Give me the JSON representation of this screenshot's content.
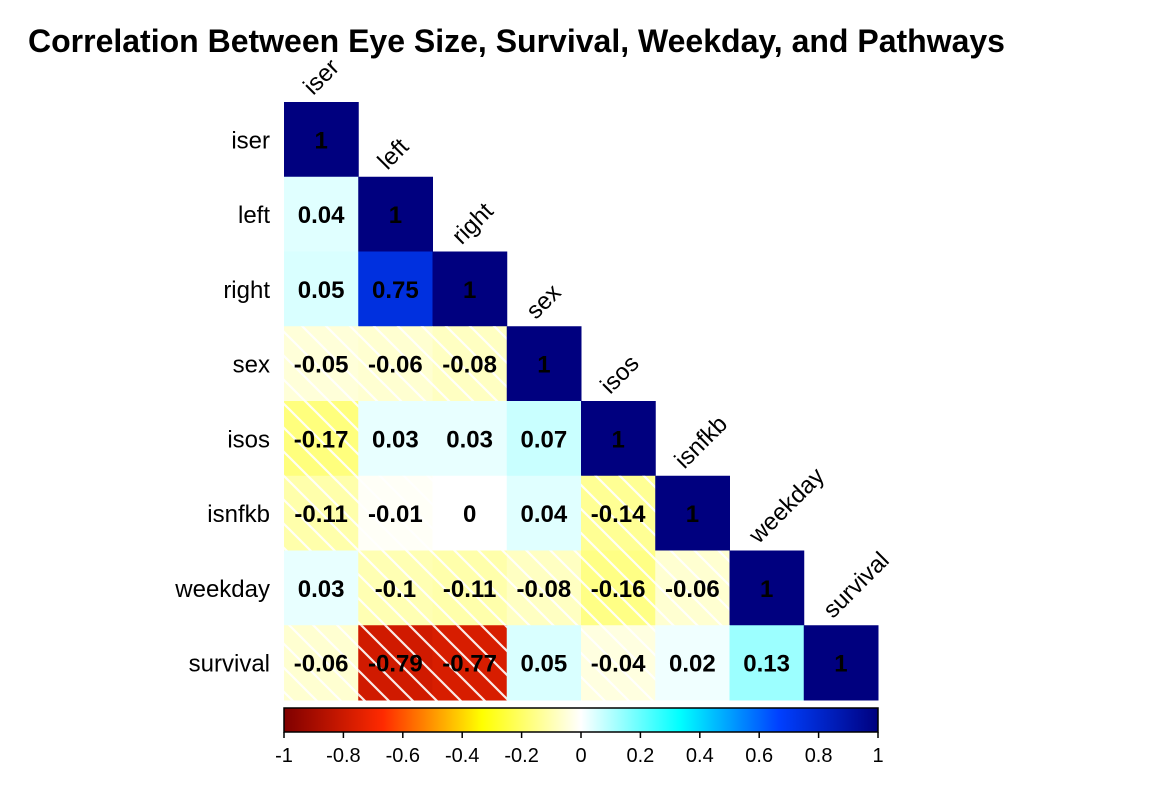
{
  "chart_data": {
    "type": "heatmap",
    "subtype": "correlation-lower-triangle",
    "title": "Correlation Between Eye Size, Survival, Weekday, and Pathways",
    "variables": [
      "iser",
      "left",
      "right",
      "sex",
      "isos",
      "isnfkb",
      "weekday",
      "survival"
    ],
    "values": [
      [
        "1"
      ],
      [
        "0.04",
        "1"
      ],
      [
        "0.05",
        "0.75",
        "1"
      ],
      [
        "-0.05",
        "-0.06",
        "-0.08",
        "1"
      ],
      [
        "-0.17",
        "0.03",
        "0.03",
        "0.07",
        "1"
      ],
      [
        "-0.11",
        "-0.01",
        "0",
        "0.04",
        "-0.14",
        "1"
      ],
      [
        "0.03",
        "-0.1",
        "-0.11",
        "-0.08",
        "-0.16",
        "-0.06",
        "1"
      ],
      [
        "-0.06",
        "-0.79",
        "-0.77",
        "0.05",
        "-0.04",
        "0.02",
        "0.13",
        "1"
      ]
    ],
    "negative_cells_hatched": true,
    "colorbar": {
      "range": [
        -1,
        1
      ],
      "ticks": [
        "-1",
        "-0.8",
        "-0.6",
        "-0.4",
        "-0.2",
        "0",
        "0.2",
        "0.4",
        "0.6",
        "0.8",
        "1"
      ],
      "placement": "bottom",
      "colors": [
        "#7f0000",
        "#ff2a00",
        "#ffff00",
        "#ffffff",
        "#00ffff",
        "#0040ff",
        "#00007f"
      ]
    }
  }
}
